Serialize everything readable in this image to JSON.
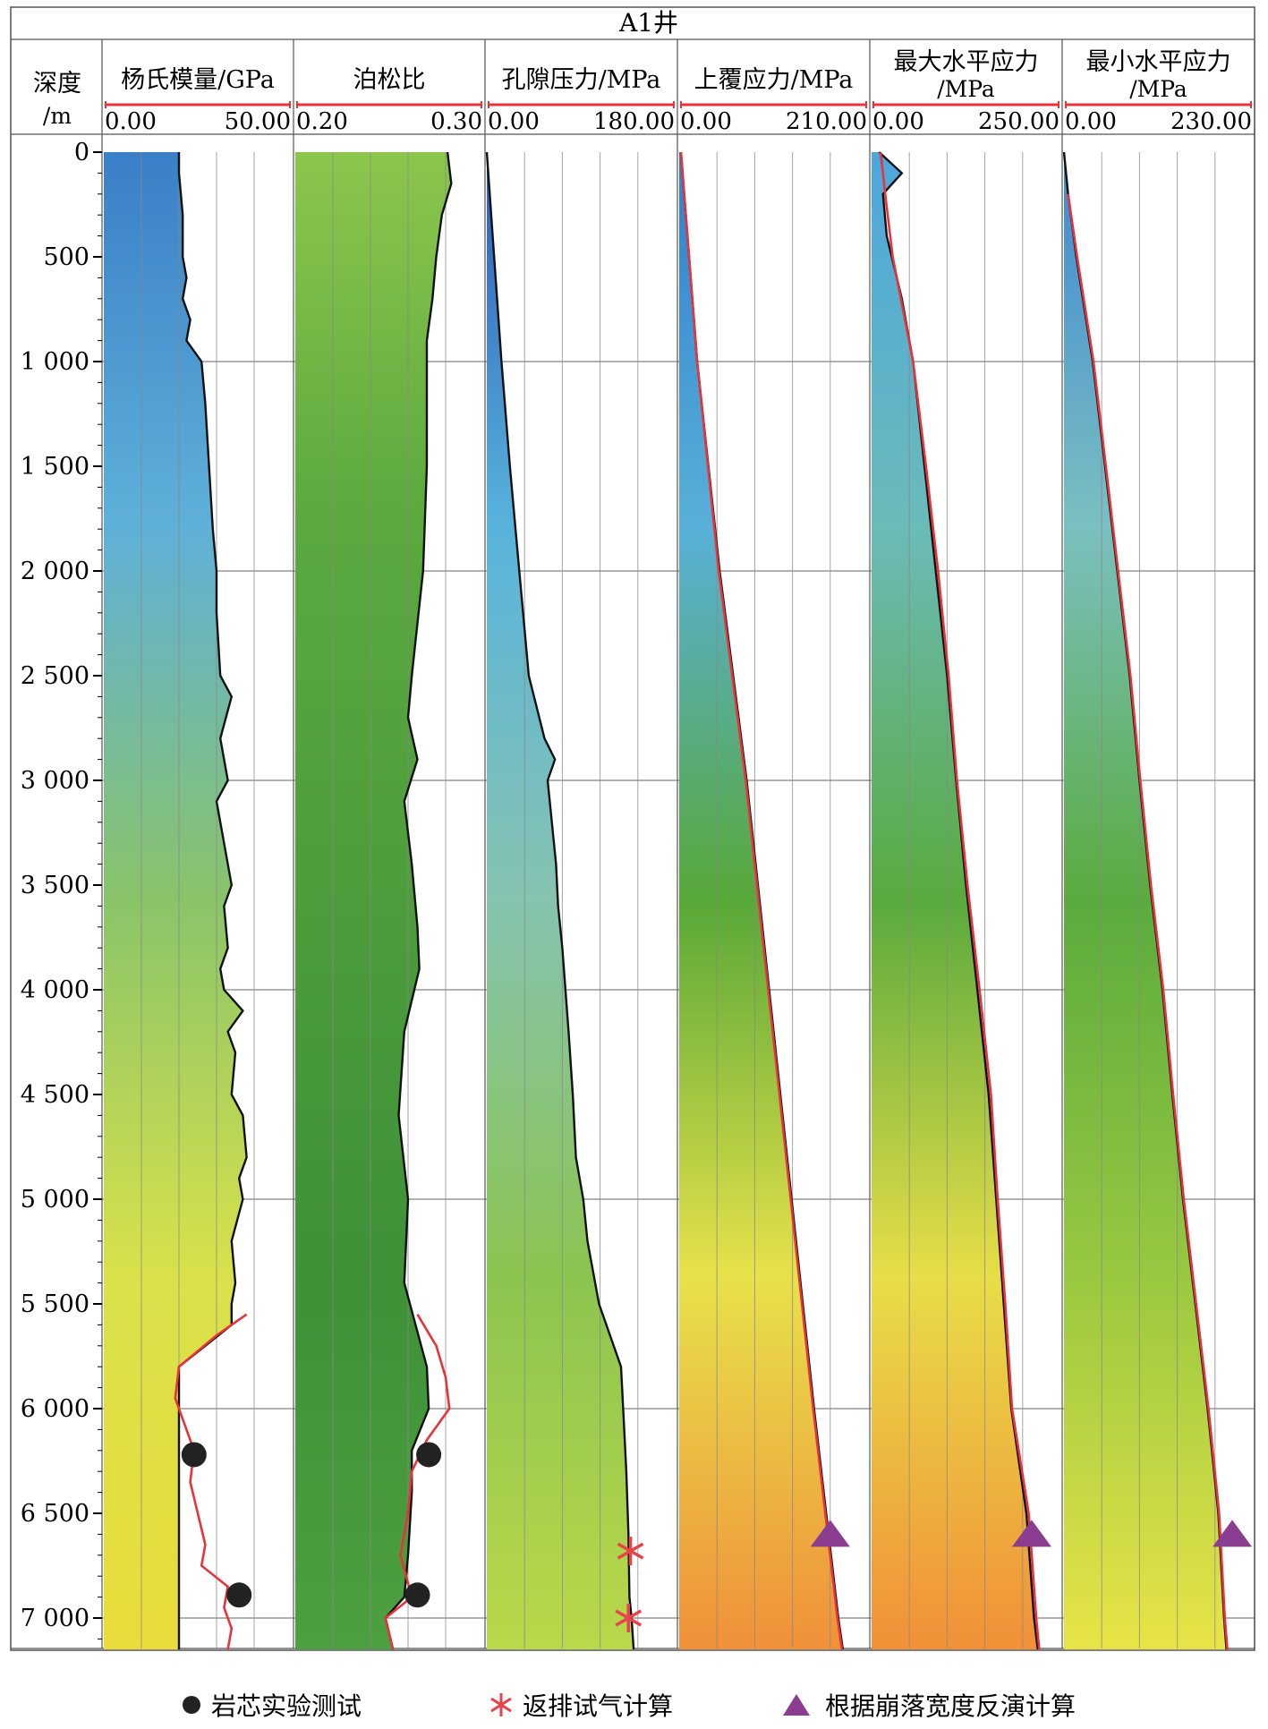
{
  "title": "A1井",
  "depth_track": {
    "label_line1": "深度",
    "label_line2": "/m"
  },
  "legend": [
    {
      "label": "岩芯实验测试",
      "marker": "circle",
      "color": "#222222"
    },
    {
      "label": "返排试气计算",
      "marker": "asterisk",
      "color": "#e8434a"
    },
    {
      "label": "根据崩落宽度反演计算",
      "marker": "triangle",
      "color": "#8a3d91"
    }
  ],
  "colors": {
    "curve_black": "#111111",
    "curve_red": "#e8333a",
    "scale_red": "#e8333a"
  },
  "chart_data": {
    "type": "line",
    "ylabel": "深度/m",
    "ylim": [
      0,
      7150
    ],
    "y_ticks": [
      0,
      500,
      1000,
      1500,
      2000,
      2500,
      3000,
      3500,
      4000,
      4500,
      5000,
      5500,
      6000,
      6500,
      7000
    ],
    "y_tick_labels": [
      "0",
      "500",
      "1 000",
      "1 500",
      "2 000",
      "2 500",
      "3 000",
      "3 500",
      "4 000",
      "4 500",
      "5 000",
      "5 500",
      "6 000",
      "6 500",
      "7 000"
    ],
    "tracks": [
      {
        "name": "ym",
        "title_line1": "杨氏模量/GPa",
        "title_line2": "",
        "min_label": "0.00",
        "max_label": "50.00",
        "xlim": [
          0,
          50
        ],
        "log": {
          "depth": [
            0,
            100,
            300,
            500,
            600,
            700,
            800,
            900,
            1000,
            1200,
            1500,
            1800,
            2000,
            2200,
            2500,
            2600,
            2800,
            3000,
            3100,
            3300,
            3500,
            3600,
            3800,
            3900,
            4000,
            4100,
            4200,
            4300,
            4500,
            4600,
            4800,
            4900,
            5000,
            5200,
            5400,
            5500,
            5600,
            5800
          ],
          "value": [
            20,
            20,
            21,
            21,
            22,
            21,
            23,
            22,
            26,
            27,
            28,
            29,
            30,
            30,
            31,
            34,
            31,
            33,
            30,
            32,
            34,
            32,
            33,
            31,
            32,
            37,
            33,
            35,
            34,
            37,
            38,
            36,
            37,
            34,
            35,
            34,
            34,
            20
          ]
        },
        "measured": {
          "depth": [
            5550,
            5650,
            5800,
            5950,
            6100,
            6200,
            6350,
            6500,
            6650,
            6750,
            6850,
            6950,
            7050,
            7150
          ],
          "value": [
            38,
            30,
            20,
            19,
            22,
            24,
            23,
            25,
            27,
            26,
            33,
            32,
            34,
            33
          ]
        },
        "core": [
          {
            "depth": 6220,
            "value": 24
          },
          {
            "depth": 6890,
            "value": 36
          }
        ],
        "stops": [
          "#3a7fc7",
          "#5fb0d9",
          "#8ac469",
          "#d9e14a",
          "#e9dc3b"
        ]
      },
      {
        "name": "pr",
        "title_line1": "泊松比",
        "title_line2": "",
        "min_label": "0.20",
        "max_label": "0.30",
        "xlim": [
          0.2,
          0.3
        ],
        "log": {
          "depth": [
            0,
            150,
            300,
            500,
            700,
            900,
            1000,
            1500,
            2000,
            2500,
            2700,
            2900,
            3100,
            3400,
            3700,
            3900,
            4200,
            4600,
            5000,
            5400,
            5600,
            5800,
            6000,
            6200,
            6400,
            6700,
            6900,
            7000,
            7150
          ],
          "value": [
            0.281,
            0.283,
            0.278,
            0.275,
            0.273,
            0.27,
            0.27,
            0.27,
            0.268,
            0.262,
            0.26,
            0.265,
            0.258,
            0.262,
            0.265,
            0.266,
            0.258,
            0.255,
            0.26,
            0.258,
            0.264,
            0.27,
            0.271,
            0.262,
            0.262,
            0.26,
            0.258,
            0.248,
            0.252
          ]
        },
        "measured": {
          "depth": [
            5550,
            5700,
            5850,
            6000,
            6150,
            6300,
            6500,
            6700,
            6900,
            7000,
            7150
          ],
          "value": [
            0.265,
            0.275,
            0.28,
            0.282,
            0.27,
            0.262,
            0.26,
            0.256,
            0.262,
            0.248,
            0.252
          ]
        },
        "core": [
          {
            "depth": 6220,
            "value": 0.271
          },
          {
            "depth": 6890,
            "value": 0.265
          }
        ],
        "stops": [
          "#8cc64d",
          "#5aa83e",
          "#4d9d3c",
          "#3f9138",
          "#4da03f"
        ]
      },
      {
        "name": "pp",
        "title_line1": "孔隙压力/MPa",
        "title_line2": "",
        "min_label": "0.00",
        "max_label": "180.00",
        "xlim": [
          0,
          180
        ],
        "log": {
          "depth": [
            0,
            500,
            1000,
            1500,
            2000,
            2500,
            2800,
            2900,
            3000,
            3200,
            3400,
            3600,
            3800,
            4000,
            4200,
            4500,
            4800,
            5000,
            5200,
            5500,
            5800,
            6000,
            6300,
            6600,
            6900,
            7000,
            7150
          ],
          "value": [
            0,
            7,
            14,
            22,
            31,
            40,
            55,
            65,
            58,
            62,
            66,
            68,
            72,
            75,
            78,
            82,
            85,
            92,
            96,
            107,
            128,
            130,
            133,
            135,
            136,
            138,
            140
          ]
        },
        "measured": {
          "depth": [],
          "value": []
        },
        "flowback": [
          {
            "depth": 6680,
            "value": 137
          },
          {
            "depth": 7000,
            "value": 135
          }
        ],
        "stops": [
          "#2e5bb8",
          "#58b3dc",
          "#86c3b0",
          "#8cc450",
          "#bad84a"
        ]
      },
      {
        "name": "ov",
        "title_line1": "上覆应力/MPa",
        "title_line2": "",
        "min_label": "0.00",
        "max_label": "210.00",
        "xlim": [
          0,
          210
        ],
        "log": {
          "depth": [
            0,
            1000,
            2000,
            3000,
            4000,
            5000,
            6000,
            7000,
            7150
          ],
          "value": [
            2,
            20,
            45,
            75,
            100,
            125,
            150,
            177,
            182
          ]
        },
        "measured": {
          "depth": [
            0,
            1000,
            2000,
            3000,
            4000,
            5000,
            6000,
            7000,
            7150
          ],
          "value": [
            2,
            20,
            44,
            74,
            99,
            124,
            149,
            176,
            181
          ]
        },
        "breakout": [
          {
            "depth": 6600,
            "value": 168
          }
        ],
        "stops": [
          "#2f7fd0",
          "#58b0d8",
          "#58a838",
          "#e7e24a",
          "#f0903a"
        ]
      },
      {
        "name": "sh",
        "title_line1": "最大水平应力",
        "title_line2": "/MPa",
        "min_label": "0.00",
        "max_label": "250.00",
        "xlim": [
          0,
          250
        ],
        "log": {
          "depth": [
            0,
            100,
            200,
            400,
            700,
            1000,
            1500,
            2000,
            2500,
            3000,
            3500,
            4000,
            4500,
            5000,
            5500,
            6000,
            6500,
            7000,
            7150
          ],
          "value": [
            10,
            40,
            15,
            20,
            40,
            55,
            70,
            85,
            100,
            112,
            125,
            140,
            155,
            165,
            175,
            185,
            205,
            215,
            220
          ]
        },
        "measured": {
          "depth": [
            0,
            200,
            500,
            1000,
            1500,
            2000,
            2500,
            3000,
            3500,
            4000,
            4500,
            5000,
            5500,
            6000,
            6500,
            7000,
            7150
          ],
          "value": [
            12,
            18,
            28,
            55,
            72,
            88,
            102,
            113,
            127,
            143,
            158,
            167,
            177,
            186,
            208,
            218,
            222
          ]
        },
        "breakout": [
          {
            "depth": 6600,
            "value": 212
          }
        ],
        "stops": [
          "#4da6dc",
          "#6bbbb9",
          "#5aaa3e",
          "#e8de47",
          "#f19038"
        ]
      },
      {
        "name": "shmin",
        "title_line1": "最小水平应力",
        "title_line2": "/MPa",
        "min_label": "0.00",
        "max_label": "230.00",
        "xlim": [
          0,
          230
        ],
        "log": {
          "depth": [
            0,
            200,
            500,
            1000,
            1500,
            2000,
            2500,
            3000,
            3500,
            4000,
            4500,
            5000,
            5500,
            6000,
            6500,
            7000,
            7150
          ],
          "value": [
            0,
            5,
            15,
            35,
            50,
            65,
            80,
            92,
            105,
            120,
            132,
            145,
            160,
            175,
            188,
            195,
            198
          ]
        },
        "measured": {
          "depth": [
            200,
            500,
            1000,
            1500,
            2000,
            2500,
            3000,
            3500,
            4000,
            4500,
            5000,
            5500,
            6000,
            6500,
            7000,
            7150
          ],
          "value": [
            5,
            16,
            36,
            51,
            66,
            81,
            93,
            106,
            121,
            133,
            146,
            161,
            176,
            189,
            196,
            199
          ]
        },
        "breakout": [
          {
            "depth": 6600,
            "value": 205
          }
        ],
        "stops": [
          "#3f86d4",
          "#7ac0c0",
          "#5aab3e",
          "#99c840",
          "#e8e447"
        ]
      }
    ]
  }
}
